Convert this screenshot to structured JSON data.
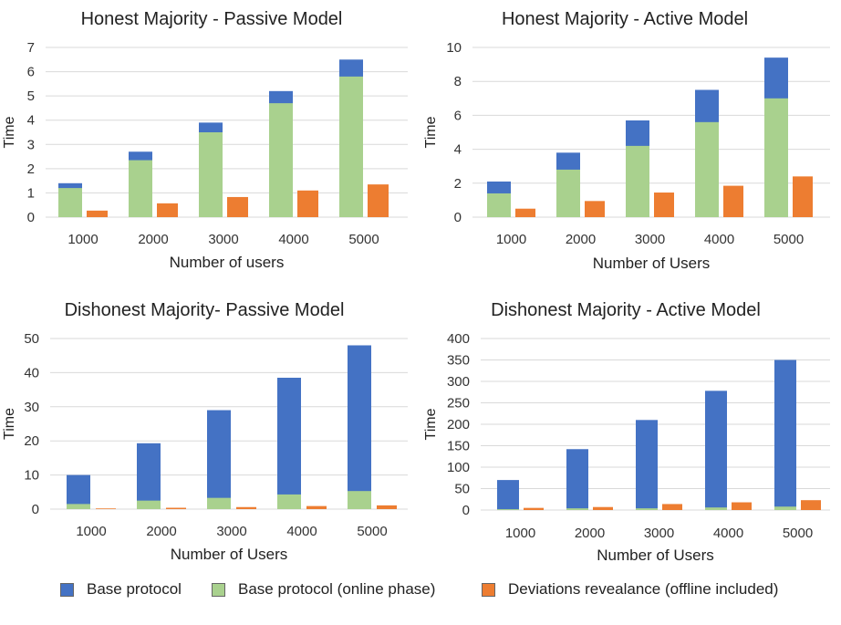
{
  "colors": {
    "base": "#4472C4",
    "online": "#A9D18E",
    "deviation": "#ED7D31"
  },
  "legend": {
    "items": [
      {
        "label": "Base protocol",
        "color": "#4472C4"
      },
      {
        "label": "Base protocol (online phase)",
        "color": "#A9D18E"
      },
      {
        "label": "Deviations revealance (offline included)",
        "color": "#ED7D31"
      }
    ]
  },
  "chart_data": [
    {
      "type": "bar",
      "title": "Honest Majority - Passive Model",
      "xlabel": "Number of users",
      "ylabel": "Time",
      "ylim": [
        0,
        7
      ],
      "yticks": [
        0,
        1,
        2,
        3,
        4,
        5,
        6,
        7
      ],
      "categories": [
        "1000",
        "2000",
        "3000",
        "4000",
        "5000"
      ],
      "series": [
        {
          "name": "Base protocol",
          "values": [
            1.4,
            2.7,
            3.9,
            5.2,
            6.5
          ]
        },
        {
          "name": "Base protocol (online phase)",
          "values": [
            1.2,
            2.35,
            3.5,
            4.7,
            5.8
          ]
        },
        {
          "name": "Deviations revealance (offline included)",
          "values": [
            0.27,
            0.57,
            0.83,
            1.1,
            1.35
          ]
        }
      ]
    },
    {
      "type": "bar",
      "title": "Honest Majority - Active Model",
      "xlabel": "Number of Users",
      "ylabel": "Time",
      "ylim": [
        0,
        10
      ],
      "yticks": [
        0,
        2,
        4,
        6,
        8,
        10
      ],
      "categories": [
        "1000",
        "2000",
        "3000",
        "4000",
        "5000"
      ],
      "series": [
        {
          "name": "Base protocol",
          "values": [
            2.1,
            3.8,
            5.7,
            7.5,
            9.4
          ]
        },
        {
          "name": "Base protocol (online phase)",
          "values": [
            1.4,
            2.8,
            4.2,
            5.6,
            7.0
          ]
        },
        {
          "name": "Deviations revealance (offline included)",
          "values": [
            0.5,
            0.95,
            1.45,
            1.85,
            2.4
          ]
        }
      ]
    },
    {
      "type": "bar",
      "title": "Dishonest Majority- Passive Model",
      "xlabel": "Number of Users",
      "ylabel": "Time",
      "ylim": [
        0,
        50
      ],
      "yticks": [
        0,
        10,
        20,
        30,
        40,
        50
      ],
      "categories": [
        "1000",
        "2000",
        "3000",
        "4000",
        "5000"
      ],
      "series": [
        {
          "name": "Base protocol",
          "values": [
            10,
            19.3,
            29,
            38.5,
            48
          ]
        },
        {
          "name": "Base protocol (online phase)",
          "values": [
            1.5,
            2.5,
            3.3,
            4.3,
            5.3
          ]
        },
        {
          "name": "Deviations revealance (offline included)",
          "values": [
            0.2,
            0.4,
            0.6,
            0.9,
            1.1
          ]
        }
      ]
    },
    {
      "type": "bar",
      "title": "Dishonest Majority - Active Model",
      "xlabel": "Number of Users",
      "ylabel": "Time",
      "ylim": [
        0,
        400
      ],
      "yticks": [
        0,
        50,
        100,
        150,
        200,
        250,
        300,
        350,
        400
      ],
      "categories": [
        "1000",
        "2000",
        "3000",
        "4000",
        "5000"
      ],
      "series": [
        {
          "name": "Base protocol",
          "values": [
            70,
            142,
            210,
            278,
            350
          ]
        },
        {
          "name": "Base protocol (online phase)",
          "values": [
            2,
            4,
            4,
            6,
            8
          ]
        },
        {
          "name": "Deviations revealance (offline included)",
          "values": [
            5,
            7,
            14,
            18,
            23
          ]
        }
      ]
    }
  ]
}
